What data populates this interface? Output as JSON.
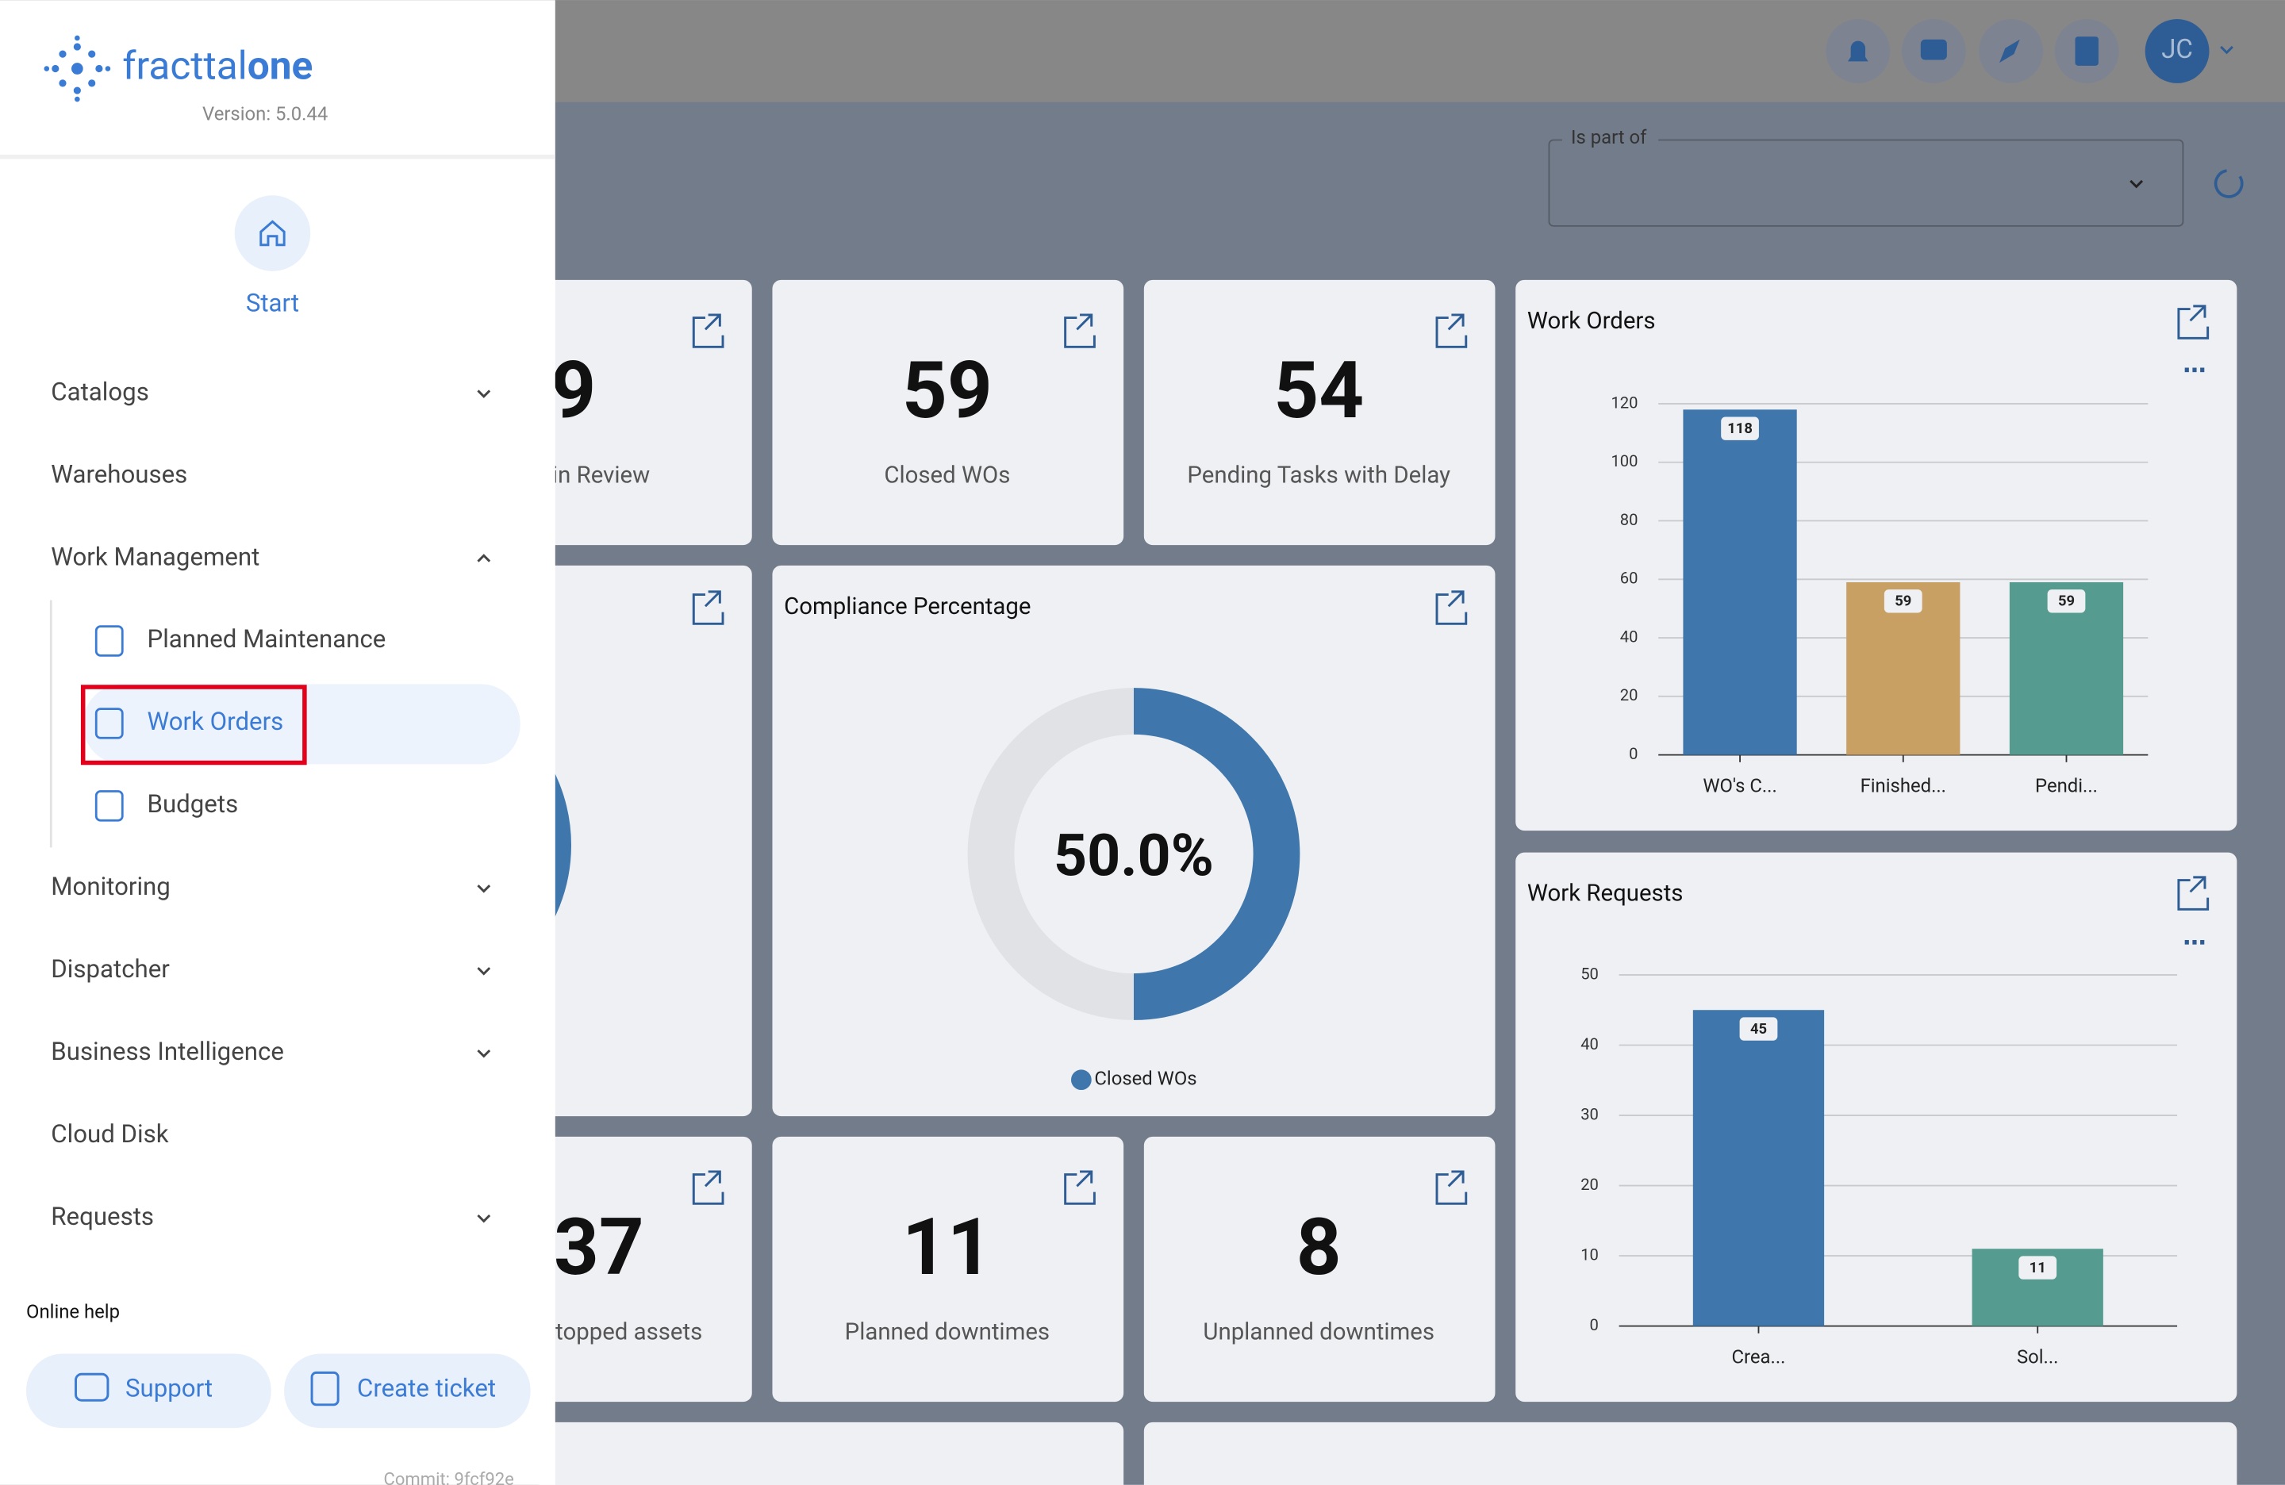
{
  "header": {
    "brand": "fracttal",
    "brand_suffix": "one",
    "version": "Version: 5.0.44"
  },
  "nav": {
    "start": "Start",
    "items": [
      {
        "label": "Catalogs",
        "state": "collapsed"
      },
      {
        "label": "Warehouses"
      },
      {
        "label": "Work Management",
        "state": "expanded",
        "children": [
          {
            "label": "Planned Maintenance"
          },
          {
            "label": "Work Orders",
            "selected": true
          },
          {
            "label": "Budgets"
          }
        ]
      },
      {
        "label": "Monitoring",
        "state": "collapsed"
      },
      {
        "label": "Dispatcher",
        "state": "collapsed"
      },
      {
        "label": "Business Intelligence",
        "state": "collapsed"
      },
      {
        "label": "Cloud Disk"
      },
      {
        "label": "Requests",
        "state": "collapsed"
      }
    ]
  },
  "help": {
    "title": "Online help",
    "buttons": [
      "Support",
      "Create ticket"
    ],
    "commit": "Commit: 9fcf92e"
  },
  "topbar": {
    "avatar": "JC"
  },
  "filter": {
    "label": "Is part of"
  },
  "kpis": [
    {
      "value": 9,
      "label": "in Review"
    },
    {
      "value": 59,
      "label": "Closed WOs"
    },
    {
      "value": 54,
      "label": "Pending Tasks with Delay"
    },
    {
      "value": 37,
      "label": "topped assets"
    },
    {
      "value": 11,
      "label": "Planned downtimes"
    },
    {
      "value": 8,
      "label": "Unplanned downtimes"
    }
  ],
  "compliance": {
    "type": "donut",
    "title": "Compliance Percentage",
    "values": [
      50
    ],
    "value_labels": [
      "50.0%"
    ],
    "legend": "Closed WOs",
    "color": "#3f77ad"
  },
  "work_orders": {
    "type": "bar",
    "title": "Work Orders",
    "categories": [
      "WO's C...",
      "Finished...",
      "Pendi..."
    ],
    "values": [
      118,
      59,
      59
    ],
    "colors": [
      "#3f77ad",
      "#c9a063",
      "#559b8f"
    ],
    "ylim": [
      0,
      120
    ],
    "yticks": [
      0,
      20,
      40,
      60,
      80,
      100,
      120
    ],
    "grid": true
  },
  "work_requests": {
    "type": "bar",
    "title": "Work Requests",
    "categories": [
      "Crea...",
      "Sol..."
    ],
    "values": [
      45,
      11
    ],
    "colors": [
      "#3f77ad",
      "#559b8f"
    ],
    "ylim": [
      0,
      50
    ],
    "yticks": [
      0,
      10,
      20,
      30,
      40,
      50
    ],
    "grid": true
  }
}
